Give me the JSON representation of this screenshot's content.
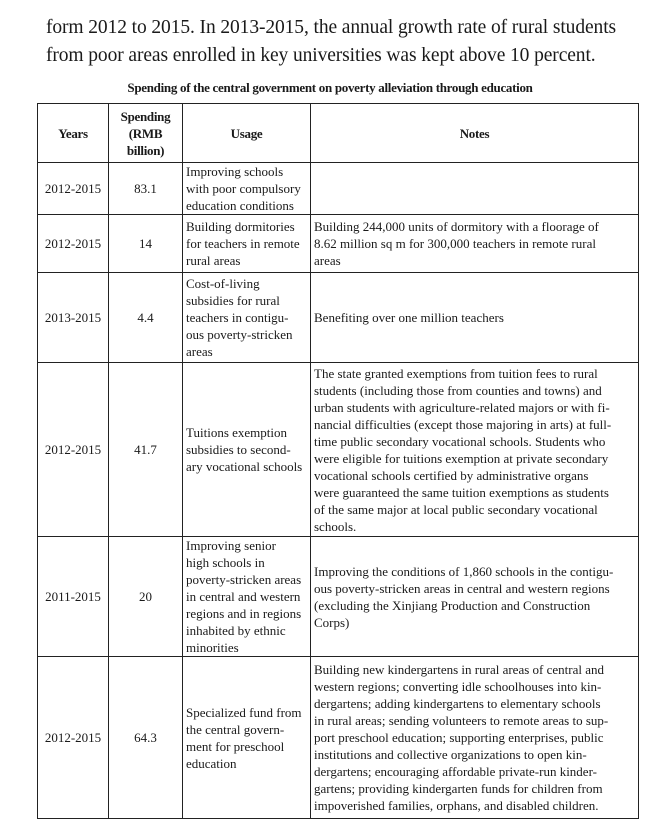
{
  "paragraph": "form 2012 to 2015. In 2013-2015, the annual growth rate of rural students\nfrom poor areas enrolled in key universities was kept above 10 percent.",
  "table": {
    "caption": "Spending of the central government on poverty alleviation through education",
    "headers": [
      "Years",
      "Spending\n(RMB\nbillion)",
      "Usage",
      "Notes"
    ],
    "rows": [
      {
        "years": "2012-2015",
        "spending": "83.1",
        "usage": "Improving schools\nwith poor compulsory\neducation conditions",
        "notes": ""
      },
      {
        "years": "2012-2015",
        "spending": "14",
        "usage": "Building dormitories\nfor teachers in remote\nrural areas",
        "notes": "Building 244,000 units of dormitory with a floorage of\n8.62 million sq m for 300,000 teachers in remote rural\nareas"
      },
      {
        "years": "2013-2015",
        "spending": "4.4",
        "usage": "Cost-of-living\nsubsidies for rural\nteachers in contigu-\nous poverty-stricken\nareas",
        "notes": "Benefiting over one million teachers"
      },
      {
        "years": "2012-2015",
        "spending": "41.7",
        "usage": "Tuitions exemption\nsubsidies to second-\nary vocational schools",
        "notes": "The state granted exemptions from tuition fees to rural\nstudents (including those from counties and towns) and\nurban students with agriculture-related majors or with fi-\nnancial difficulties (except those majoring in arts) at full-\ntime public secondary vocational schools. Students who\nwere eligible for tuitions exemption at private secondary\nvocational schools certified by administrative organs\nwere guaranteed the same tuition exemptions as students\nof the same major at local public secondary vocational\nschools."
      },
      {
        "years": "2011-2015",
        "spending": "20",
        "usage": "Improving senior\nhigh schools in\npoverty-stricken areas\nin central and western\nregions and in regions\ninhabited by ethnic\nminorities",
        "notes": "Improving the conditions of 1,860 schools in the contigu-\nous poverty-stricken areas in central and western regions\n(excluding the Xinjiang Production and Construction\nCorps)"
      },
      {
        "years": "2012-2015",
        "spending": "64.3",
        "usage": "Specialized fund from\nthe central govern-\nment for preschool\neducation",
        "notes": "Building new kindergartens in rural areas of central and\nwestern regions; converting idle schoolhouses into kin-\ndergartens; adding kindergartens to elementary schools\nin rural areas; sending volunteers to remote areas to sup-\nport preschool education; supporting enterprises, public\ninstitutions and collective organizations to open kin-\ndergartens; encouraging affordable private-run kinder-\ngartens; providing kindergarten funds for children from\nimpoverished families, orphans, and disabled children."
      }
    ]
  }
}
